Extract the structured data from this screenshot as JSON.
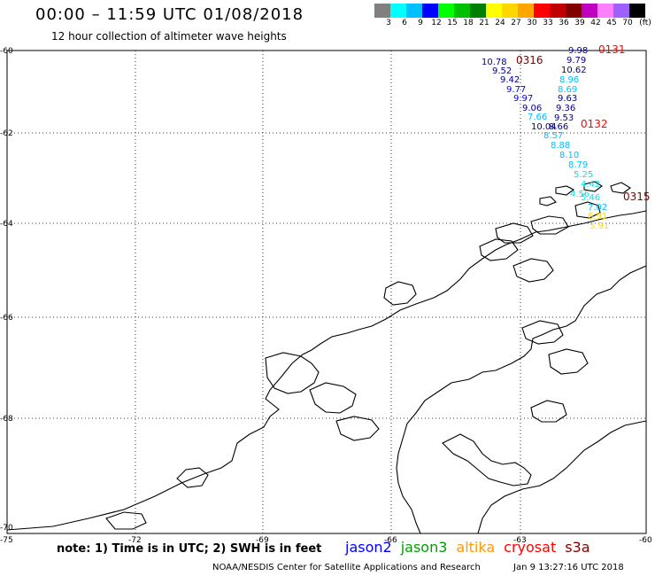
{
  "header": {
    "title": "00:00 – 11:59 UTC 01/08/2018",
    "subtitle": "12 hour collection of altimeter wave heights"
  },
  "legend": {
    "colors": [
      "#808080",
      "#00ffff",
      "#00bfff",
      "#0000ff",
      "#00ff00",
      "#00c000",
      "#008000",
      "#ffff00",
      "#ffd700",
      "#ffa500",
      "#ff0000",
      "#c00000",
      "#800000",
      "#c000c0",
      "#ff80ff",
      "#a060ff",
      "#000000"
    ],
    "labels": [
      "3",
      "6",
      "9",
      "12",
      "15",
      "18",
      "21",
      "24",
      "27",
      "30",
      "33",
      "36",
      "39",
      "42",
      "45",
      "70",
      "(ft)"
    ]
  },
  "axes": {
    "lat_labels": [
      "-60",
      "-62",
      "-64",
      "-66",
      "-68",
      "-70"
    ],
    "lon_labels": [
      "-75",
      "-72",
      "-69",
      "-66",
      "-63",
      "-60"
    ]
  },
  "tracks": [
    {
      "time": "0131",
      "time_color": "#ff0000",
      "values": [
        "9.98",
        "9.79",
        "10.62",
        "8.96",
        "8.69",
        "9.63",
        "9.36",
        "9.53",
        "8.66"
      ]
    },
    {
      "time": "0316",
      "time_color": "#800000",
      "values": [
        "10.78",
        "9.52",
        "9.42",
        "9.77",
        "9.97",
        "9.06",
        "7.66",
        "10.04",
        "8.57"
      ]
    },
    {
      "time": "0132",
      "time_color": "#ff0000",
      "values": [
        "8.88",
        "8.10",
        "8.79",
        "5.25",
        "4.42",
        "4.56",
        "5.46",
        "7.02",
        "6.91",
        "5.91"
      ]
    },
    {
      "time": "0315",
      "time_color": "#800000",
      "values": []
    }
  ],
  "value_colors": {
    "deep": "#00008b",
    "mid": "#0000ff",
    "light": "#00bfff",
    "cyan": "#00e5ee",
    "yellow": "#ffd700"
  },
  "footer": {
    "note": "note: 1) Time is in UTC; 2) SWH is in feet",
    "satellites": [
      {
        "name": "jason2",
        "color": "#0000ff"
      },
      {
        "name": "jason3",
        "color": "#00a000"
      },
      {
        "name": "altika",
        "color": "#ff9900"
      },
      {
        "name": "cryosat",
        "color": "#ff0000"
      },
      {
        "name": "s3a",
        "color": "#800000"
      }
    ],
    "credit": "NOAA/NESDIS Center for Satellite Applications and Research",
    "timestamp": "Jan  9 13:27:16 UTC 2018"
  }
}
